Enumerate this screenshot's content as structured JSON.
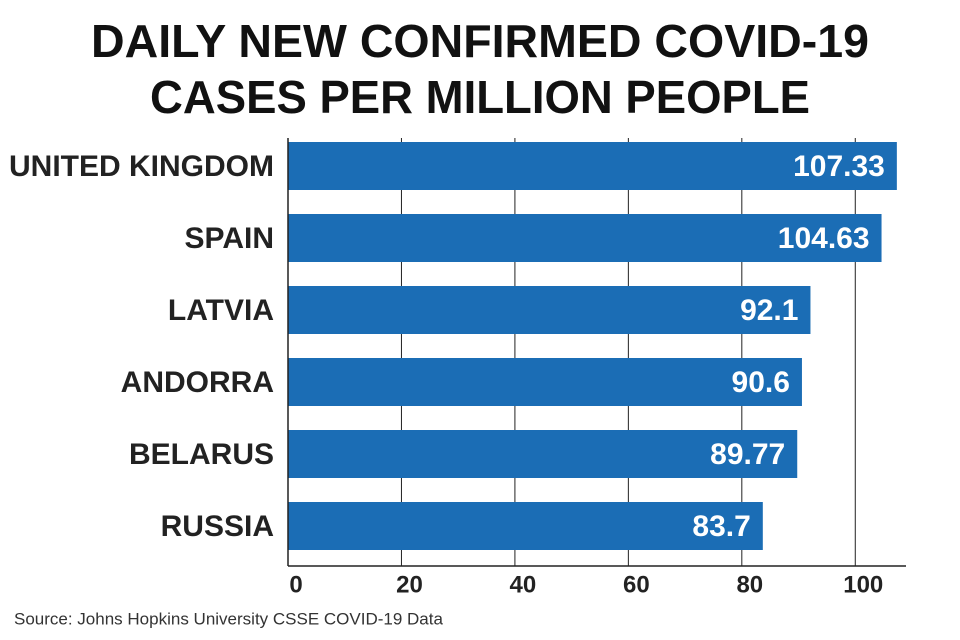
{
  "chart_data": {
    "type": "bar",
    "orientation": "horizontal",
    "title": [
      "DAILY NEW CONFIRMED COVID-19",
      "CASES PER MILLION PEOPLE"
    ],
    "categories": [
      "UNITED KINGDOM",
      "SPAIN",
      "LATVIA",
      "ANDORRA",
      "BELARUS",
      "RUSSIA"
    ],
    "values": [
      107.33,
      104.63,
      92.1,
      90.6,
      89.77,
      83.7
    ],
    "color": "#1b6db5",
    "xlim": [
      0,
      110
    ],
    "xticks": [
      0,
      20,
      40,
      60,
      80,
      100
    ],
    "grid": true,
    "source": "Source: Johns Hopkins University CSSE COVID-19 Data"
  }
}
